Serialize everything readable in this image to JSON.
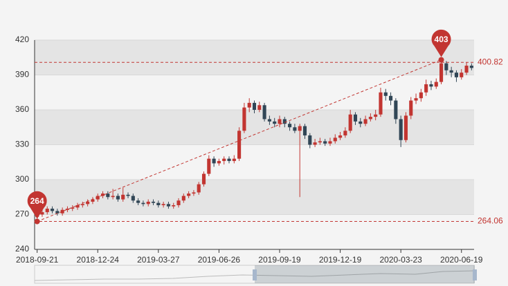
{
  "chart_data": {
    "type": "candlestick",
    "categories": [
      "2018-09-21",
      null,
      null,
      null,
      null,
      null,
      null,
      null,
      null,
      null,
      null,
      null,
      "2018-12-24",
      null,
      null,
      null,
      null,
      null,
      null,
      null,
      null,
      null,
      null,
      null,
      "2019-03-27",
      null,
      null,
      null,
      null,
      null,
      null,
      null,
      null,
      null,
      null,
      null,
      "2019-06-26",
      null,
      null,
      null,
      null,
      null,
      null,
      null,
      null,
      null,
      null,
      null,
      "2019-09-19",
      null,
      null,
      null,
      null,
      null,
      null,
      null,
      null,
      null,
      null,
      null,
      "2019-12-19",
      null,
      null,
      null,
      null,
      null,
      null,
      null,
      null,
      null,
      null,
      null,
      "2020-03-23",
      null,
      null,
      null,
      null,
      null,
      null,
      null,
      null,
      null,
      null,
      null,
      "2020-06-19",
      null,
      null
    ],
    "values": [
      [
        268,
        270,
        264,
        272
      ],
      [
        270,
        272,
        268,
        274
      ],
      [
        272,
        275,
        270,
        277
      ],
      [
        275,
        273,
        271,
        277
      ],
      [
        273,
        271,
        269,
        275
      ],
      [
        271,
        274,
        269,
        276
      ],
      [
        274,
        275,
        272,
        277
      ],
      [
        275,
        276,
        273,
        278
      ],
      [
        276,
        278,
        274,
        280
      ],
      [
        278,
        279,
        276,
        281
      ],
      [
        279,
        281,
        277,
        283
      ],
      [
        281,
        283,
        279,
        285
      ],
      [
        283,
        286,
        281,
        288
      ],
      [
        286,
        288,
        284,
        290
      ],
      [
        288,
        285,
        283,
        290
      ],
      [
        285,
        286,
        283,
        292
      ],
      [
        286,
        283,
        281,
        288
      ],
      [
        283,
        287,
        281,
        293
      ],
      [
        287,
        286,
        284,
        289
      ],
      [
        286,
        282,
        280,
        288
      ],
      [
        282,
        280,
        278,
        284
      ],
      [
        280,
        279,
        277,
        282
      ],
      [
        279,
        281,
        277,
        283
      ],
      [
        281,
        280,
        278,
        283
      ],
      [
        280,
        278,
        276,
        282
      ],
      [
        278,
        279,
        276,
        281
      ],
      [
        279,
        277,
        275,
        281
      ],
      [
        277,
        278,
        275,
        280
      ],
      [
        278,
        282,
        276,
        284
      ],
      [
        282,
        286,
        280,
        288
      ],
      [
        286,
        288,
        284,
        290
      ],
      [
        288,
        289,
        286,
        291
      ],
      [
        289,
        296,
        287,
        298
      ],
      [
        296,
        305,
        294,
        307
      ],
      [
        305,
        318,
        303,
        321
      ],
      [
        318,
        314,
        311,
        320
      ],
      [
        314,
        316,
        312,
        318
      ],
      [
        316,
        318,
        313,
        320
      ],
      [
        318,
        316,
        314,
        320
      ],
      [
        316,
        318,
        314,
        321
      ],
      [
        318,
        342,
        316,
        345
      ],
      [
        342,
        362,
        340,
        366
      ],
      [
        362,
        366,
        358,
        370
      ],
      [
        366,
        360,
        357,
        368
      ],
      [
        360,
        364,
        358,
        367
      ],
      [
        364,
        352,
        350,
        366
      ],
      [
        352,
        350,
        347,
        355
      ],
      [
        350,
        348,
        345,
        353
      ],
      [
        348,
        352,
        345,
        355
      ],
      [
        352,
        348,
        345,
        354
      ],
      [
        348,
        345,
        342,
        350
      ],
      [
        345,
        342,
        340,
        348
      ],
      [
        342,
        346,
        285,
        348
      ],
      [
        346,
        338,
        335,
        348
      ],
      [
        338,
        330,
        327,
        340
      ],
      [
        330,
        332,
        328,
        335
      ],
      [
        332,
        333,
        330,
        336
      ],
      [
        333,
        331,
        329,
        335
      ],
      [
        331,
        333,
        329,
        336
      ],
      [
        333,
        336,
        331,
        339
      ],
      [
        336,
        338,
        334,
        341
      ],
      [
        338,
        342,
        336,
        345
      ],
      [
        342,
        356,
        340,
        360
      ],
      [
        356,
        350,
        347,
        358
      ],
      [
        350,
        348,
        345,
        353
      ],
      [
        348,
        352,
        346,
        355
      ],
      [
        352,
        354,
        350,
        357
      ],
      [
        354,
        356,
        351,
        360
      ],
      [
        356,
        375,
        354,
        379
      ],
      [
        375,
        372,
        368,
        378
      ],
      [
        372,
        368,
        364,
        375
      ],
      [
        368,
        352,
        348,
        370
      ],
      [
        352,
        334,
        328,
        355
      ],
      [
        334,
        355,
        332,
        358
      ],
      [
        355,
        368,
        352,
        371
      ],
      [
        368,
        370,
        365,
        374
      ],
      [
        370,
        375,
        367,
        378
      ],
      [
        375,
        382,
        372,
        386
      ],
      [
        382,
        380,
        377,
        385
      ],
      [
        380,
        384,
        378,
        387
      ],
      [
        384,
        400,
        382,
        403
      ],
      [
        400,
        394,
        390,
        402
      ],
      [
        394,
        392,
        388,
        397
      ],
      [
        392,
        388,
        384,
        394
      ],
      [
        388,
        392,
        386,
        395
      ],
      [
        392,
        398,
        390,
        401
      ],
      [
        398,
        396,
        394,
        400
      ]
    ],
    "up_color": "#c23531",
    "down_color": "#314656",
    "ylim": [
      240,
      420
    ],
    "yticks": [
      240,
      270,
      300,
      330,
      360,
      390,
      420
    ],
    "split_area": true,
    "mark_point_max": 403,
    "mark_point_min": 264,
    "mark_lines": [
      400.82,
      264.06
    ]
  }
}
